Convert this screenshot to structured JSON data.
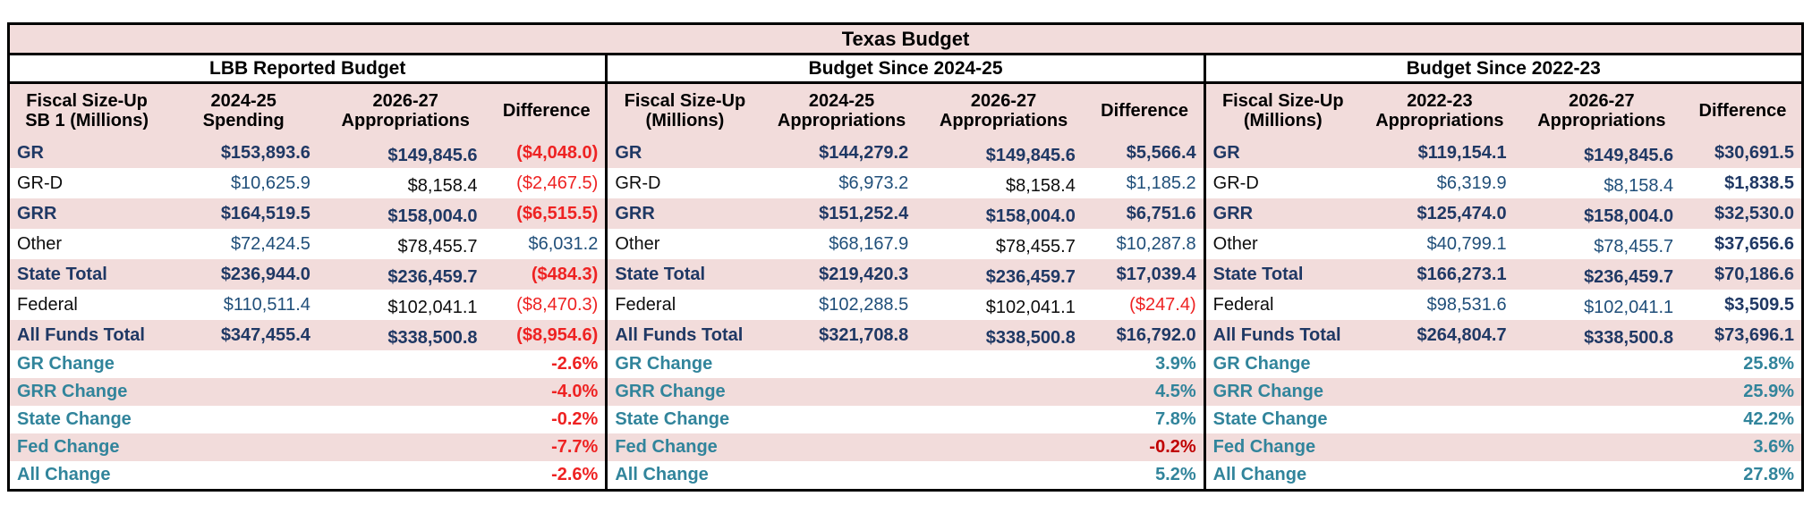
{
  "title": "Texas Budget",
  "palette": {
    "band_pink": "#f2dcdb",
    "navy_bold": "#1f3864",
    "navy_regular": "#1f4e79",
    "near_black": "#0d0d0d",
    "negative_red": "#ee2222",
    "negative_dark_red": "#c00000",
    "change_teal": "#31849b",
    "border_black": "#000000"
  },
  "sections": [
    {
      "name": "LBB Reported Budget",
      "columns": [
        "Fiscal Size-Up\nSB 1 (Millions)",
        "2024-25\nSpending",
        "2026-27\nAppropriations",
        "Difference"
      ],
      "rows": [
        {
          "label": "GR",
          "label_style": "navy-b",
          "bg": "pink",
          "type": "data",
          "cells": [
            {
              "t": "$153,893.6",
              "s": "navy-b"
            },
            {
              "t": "$149,845.6",
              "s": "navy-b shift"
            },
            {
              "t": "($4,048.0)",
              "s": "red-b"
            }
          ]
        },
        {
          "label": "GR-D",
          "label_style": "black",
          "bg": "white",
          "type": "data",
          "cells": [
            {
              "t": "$10,625.9",
              "s": "navy"
            },
            {
              "t": "$8,158.4",
              "s": "black shift"
            },
            {
              "t": "($2,467.5)",
              "s": "red"
            }
          ]
        },
        {
          "label": "GRR",
          "label_style": "navy-b",
          "bg": "pink",
          "type": "data",
          "cells": [
            {
              "t": "$164,519.5",
              "s": "navy-b"
            },
            {
              "t": "$158,004.0",
              "s": "navy-b shift"
            },
            {
              "t": "($6,515.5)",
              "s": "red-b"
            }
          ]
        },
        {
          "label": "Other",
          "label_style": "black",
          "bg": "white",
          "type": "data",
          "cells": [
            {
              "t": "$72,424.5",
              "s": "navy"
            },
            {
              "t": "$78,455.7",
              "s": "black shift"
            },
            {
              "t": "$6,031.2",
              "s": "navy"
            }
          ]
        },
        {
          "label": "State Total",
          "label_style": "navy-b",
          "bg": "pink",
          "type": "data",
          "cells": [
            {
              "t": "$236,944.0",
              "s": "navy-b"
            },
            {
              "t": "$236,459.7",
              "s": "navy-b shift"
            },
            {
              "t": "($484.3)",
              "s": "red-b"
            }
          ]
        },
        {
          "label": "Federal",
          "label_style": "black",
          "bg": "white",
          "type": "data",
          "cells": [
            {
              "t": "$110,511.4",
              "s": "navy"
            },
            {
              "t": "$102,041.1",
              "s": "black shift"
            },
            {
              "t": "($8,470.3)",
              "s": "red"
            }
          ]
        },
        {
          "label": "All Funds Total",
          "label_style": "navy-b",
          "bg": "pink",
          "type": "data",
          "cells": [
            {
              "t": "$347,455.4",
              "s": "navy-b"
            },
            {
              "t": "$338,500.8",
              "s": "navy-b shift"
            },
            {
              "t": "($8,954.6)",
              "s": "red-b"
            }
          ]
        },
        {
          "label": "GR Change",
          "label_style": "teal-b",
          "bg": "white",
          "type": "change",
          "cells": [
            {
              "t": "",
              "s": ""
            },
            {
              "t": "",
              "s": ""
            },
            {
              "t": "-2.6%",
              "s": "red-b"
            }
          ]
        },
        {
          "label": "GRR Change",
          "label_style": "teal-b",
          "bg": "pink",
          "type": "change",
          "cells": [
            {
              "t": "",
              "s": ""
            },
            {
              "t": "",
              "s": ""
            },
            {
              "t": "-4.0%",
              "s": "red-b"
            }
          ]
        },
        {
          "label": "State Change",
          "label_style": "teal-b",
          "bg": "white",
          "type": "change",
          "cells": [
            {
              "t": "",
              "s": ""
            },
            {
              "t": "",
              "s": ""
            },
            {
              "t": "-0.2%",
              "s": "red-b"
            }
          ]
        },
        {
          "label": "Fed Change",
          "label_style": "teal-b",
          "bg": "pink",
          "type": "change",
          "cells": [
            {
              "t": "",
              "s": ""
            },
            {
              "t": "",
              "s": ""
            },
            {
              "t": "-7.7%",
              "s": "red-b"
            }
          ]
        },
        {
          "label": "All Change",
          "label_style": "teal-b",
          "bg": "white",
          "type": "change",
          "cells": [
            {
              "t": "",
              "s": ""
            },
            {
              "t": "",
              "s": ""
            },
            {
              "t": "-2.6%",
              "s": "red-b"
            }
          ]
        }
      ]
    },
    {
      "name": "Budget Since 2024-25",
      "columns": [
        "Fiscal Size-Up\n(Millions)",
        "2024-25\nAppropriations",
        "2026-27\nAppropriations",
        "Difference"
      ],
      "rows": [
        {
          "label": "GR",
          "label_style": "navy-b",
          "bg": "pink",
          "type": "data",
          "cells": [
            {
              "t": "$144,279.2",
              "s": "navy-b"
            },
            {
              "t": "$149,845.6",
              "s": "navy-b shift"
            },
            {
              "t": "$5,566.4",
              "s": "navy-b"
            }
          ]
        },
        {
          "label": "GR-D",
          "label_style": "black",
          "bg": "white",
          "type": "data",
          "cells": [
            {
              "t": "$6,973.2",
              "s": "navy"
            },
            {
              "t": "$8,158.4",
              "s": "black shift"
            },
            {
              "t": "$1,185.2",
              "s": "navy"
            }
          ]
        },
        {
          "label": "GRR",
          "label_style": "navy-b",
          "bg": "pink",
          "type": "data",
          "cells": [
            {
              "t": "$151,252.4",
              "s": "navy-b"
            },
            {
              "t": "$158,004.0",
              "s": "navy-b shift"
            },
            {
              "t": "$6,751.6",
              "s": "navy-b"
            }
          ]
        },
        {
          "label": "Other",
          "label_style": "black",
          "bg": "white",
          "type": "data",
          "cells": [
            {
              "t": "$68,167.9",
              "s": "navy"
            },
            {
              "t": "$78,455.7",
              "s": "black shift"
            },
            {
              "t": "$10,287.8",
              "s": "navy"
            }
          ]
        },
        {
          "label": "State Total",
          "label_style": "navy-b",
          "bg": "pink",
          "type": "data",
          "cells": [
            {
              "t": "$219,420.3",
              "s": "navy-b"
            },
            {
              "t": "$236,459.7",
              "s": "navy-b shift"
            },
            {
              "t": "$17,039.4",
              "s": "navy-b"
            }
          ]
        },
        {
          "label": "Federal",
          "label_style": "black",
          "bg": "white",
          "type": "data",
          "cells": [
            {
              "t": "$102,288.5",
              "s": "navy"
            },
            {
              "t": "$102,041.1",
              "s": "black shift"
            },
            {
              "t": "($247.4)",
              "s": "red"
            }
          ]
        },
        {
          "label": "All Funds Total",
          "label_style": "navy-b",
          "bg": "pink",
          "type": "data",
          "cells": [
            {
              "t": "$321,708.8",
              "s": "navy-b"
            },
            {
              "t": "$338,500.8",
              "s": "navy-b shift"
            },
            {
              "t": "$16,792.0",
              "s": "navy-b"
            }
          ]
        },
        {
          "label": "GR Change",
          "label_style": "teal-b",
          "bg": "white",
          "type": "change",
          "cells": [
            {
              "t": "",
              "s": ""
            },
            {
              "t": "",
              "s": ""
            },
            {
              "t": "3.9%",
              "s": "teal-b"
            }
          ]
        },
        {
          "label": "GRR Change",
          "label_style": "teal-b",
          "bg": "pink",
          "type": "change",
          "cells": [
            {
              "t": "",
              "s": ""
            },
            {
              "t": "",
              "s": ""
            },
            {
              "t": "4.5%",
              "s": "teal-b"
            }
          ]
        },
        {
          "label": "State Change",
          "label_style": "teal-b",
          "bg": "white",
          "type": "change",
          "cells": [
            {
              "t": "",
              "s": ""
            },
            {
              "t": "",
              "s": ""
            },
            {
              "t": "7.8%",
              "s": "teal-b"
            }
          ]
        },
        {
          "label": "Fed Change",
          "label_style": "teal-b",
          "bg": "pink",
          "type": "change",
          "cells": [
            {
              "t": "",
              "s": ""
            },
            {
              "t": "",
              "s": ""
            },
            {
              "t": "-0.2%",
              "s": "darkred-b"
            }
          ]
        },
        {
          "label": "All Change",
          "label_style": "teal-b",
          "bg": "white",
          "type": "change",
          "cells": [
            {
              "t": "",
              "s": ""
            },
            {
              "t": "",
              "s": ""
            },
            {
              "t": "5.2%",
              "s": "teal-b"
            }
          ]
        }
      ]
    },
    {
      "name": "Budget Since 2022-23",
      "columns": [
        "Fiscal Size-Up\n(Millions)",
        "2022-23\nAppropriations",
        "2026-27\nAppropriations",
        "Difference"
      ],
      "rows": [
        {
          "label": "GR",
          "label_style": "navy-b",
          "bg": "pink",
          "type": "data",
          "cells": [
            {
              "t": "$119,154.1",
              "s": "navy-b"
            },
            {
              "t": "$149,845.6",
              "s": "navy-b shift"
            },
            {
              "t": "$30,691.5",
              "s": "navy-b"
            }
          ]
        },
        {
          "label": "GR-D",
          "label_style": "black",
          "bg": "white",
          "type": "data",
          "cells": [
            {
              "t": "$6,319.9",
              "s": "navy"
            },
            {
              "t": "$8,158.4",
              "s": "navy shift"
            },
            {
              "t": "$1,838.5",
              "s": "navy-b"
            }
          ]
        },
        {
          "label": "GRR",
          "label_style": "navy-b",
          "bg": "pink",
          "type": "data",
          "cells": [
            {
              "t": "$125,474.0",
              "s": "navy-b"
            },
            {
              "t": "$158,004.0",
              "s": "navy-b shift"
            },
            {
              "t": "$32,530.0",
              "s": "navy-b"
            }
          ]
        },
        {
          "label": "Other",
          "label_style": "black",
          "bg": "white",
          "type": "data",
          "cells": [
            {
              "t": "$40,799.1",
              "s": "navy"
            },
            {
              "t": "$78,455.7",
              "s": "navy shift"
            },
            {
              "t": "$37,656.6",
              "s": "navy-b"
            }
          ]
        },
        {
          "label": "State Total",
          "label_style": "navy-b",
          "bg": "pink",
          "type": "data",
          "cells": [
            {
              "t": "$166,273.1",
              "s": "navy-b"
            },
            {
              "t": "$236,459.7",
              "s": "navy-b shift"
            },
            {
              "t": "$70,186.6",
              "s": "navy-b"
            }
          ]
        },
        {
          "label": "Federal",
          "label_style": "black",
          "bg": "white",
          "type": "data",
          "cells": [
            {
              "t": "$98,531.6",
              "s": "navy"
            },
            {
              "t": "$102,041.1",
              "s": "navy shift"
            },
            {
              "t": "$3,509.5",
              "s": "navy-b"
            }
          ]
        },
        {
          "label": "All Funds Total",
          "label_style": "navy-b",
          "bg": "pink",
          "type": "data",
          "cells": [
            {
              "t": "$264,804.7",
              "s": "navy-b"
            },
            {
              "t": "$338,500.8",
              "s": "navy-b shift"
            },
            {
              "t": "$73,696.1",
              "s": "navy-b"
            }
          ]
        },
        {
          "label": "GR Change",
          "label_style": "teal-b",
          "bg": "white",
          "type": "change",
          "cells": [
            {
              "t": "",
              "s": ""
            },
            {
              "t": "",
              "s": ""
            },
            {
              "t": "25.8%",
              "s": "teal-b"
            }
          ]
        },
        {
          "label": "GRR Change",
          "label_style": "teal-b",
          "bg": "pink",
          "type": "change",
          "cells": [
            {
              "t": "",
              "s": ""
            },
            {
              "t": "",
              "s": ""
            },
            {
              "t": "25.9%",
              "s": "teal-b"
            }
          ]
        },
        {
          "label": "State Change",
          "label_style": "teal-b",
          "bg": "white",
          "type": "change",
          "cells": [
            {
              "t": "",
              "s": ""
            },
            {
              "t": "",
              "s": ""
            },
            {
              "t": "42.2%",
              "s": "teal-b"
            }
          ]
        },
        {
          "label": "Fed Change",
          "label_style": "teal-b",
          "bg": "pink",
          "type": "change",
          "cells": [
            {
              "t": "",
              "s": ""
            },
            {
              "t": "",
              "s": ""
            },
            {
              "t": "3.6%",
              "s": "teal-b"
            }
          ]
        },
        {
          "label": "All Change",
          "label_style": "teal-b",
          "bg": "white",
          "type": "change",
          "cells": [
            {
              "t": "",
              "s": ""
            },
            {
              "t": "",
              "s": ""
            },
            {
              "t": "27.8%",
              "s": "teal-b"
            }
          ]
        }
      ]
    }
  ]
}
